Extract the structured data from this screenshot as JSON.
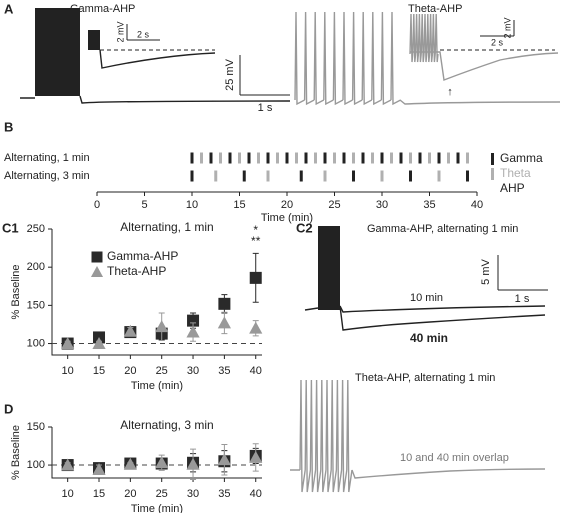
{
  "panel_a": {
    "label": "A",
    "gamma_title": "Gamma-AHP",
    "theta_title": "Theta-AHP",
    "gamma_inset_v": "2 mV",
    "gamma_inset_h": "2 s",
    "theta_inset_v": "2 mV",
    "theta_inset_h": "2 s",
    "scale_v": "25 mV",
    "scale_h": "1 s",
    "arrow": "↑"
  },
  "panel_b": {
    "label": "B"
  },
  "panel_c1": {
    "label": "C1"
  },
  "panel_d": {
    "label": "D"
  },
  "panel_c2": {
    "label": "C2",
    "gamma_title": "Gamma-AHP, alternating 1 min",
    "scale_v": "5 mV",
    "scale_h": "1 s",
    "trace_10": "10 min",
    "trace_40": "40 min",
    "theta_title": "Theta-AHP, alternating 1 min",
    "theta_note": "10 and 40 min overlap"
  },
  "chart_data": [
    {
      "type": "raster",
      "xlabel": "Time (min)",
      "xlim": [
        0,
        40
      ],
      "xticks": [
        0,
        5,
        10,
        15,
        20,
        25,
        30,
        35,
        40
      ],
      "series": [
        {
          "name": "Gamma",
          "color": "#222222"
        },
        {
          "name": "Theta",
          "color": "#b0b0b0"
        }
      ],
      "legend_note": "AHP",
      "rows": [
        {
          "label": "Alternating, 1 min",
          "events": [
            [
              10,
              12,
              14,
              16,
              18,
              20,
              22,
              24,
              26,
              28,
              30,
              32,
              34,
              36,
              38
            ],
            [
              11,
              13,
              15,
              17,
              19,
              21,
              23,
              25,
              27,
              29,
              31,
              33,
              35,
              37,
              39
            ]
          ]
        },
        {
          "label": "Alternating, 3 min",
          "events": [
            [
              10,
              15.5,
              21.5,
              27,
              33,
              39
            ],
            [
              12.5,
              18,
              24,
              30,
              36
            ]
          ]
        }
      ]
    },
    {
      "type": "scatter",
      "title": "Alternating, 1 min",
      "xlabel": "Time (min)",
      "ylabel": "% Baseline",
      "x": [
        10,
        15,
        20,
        25,
        30,
        35,
        40
      ],
      "xlim": [
        7.5,
        41
      ],
      "xticks": [
        10,
        15,
        20,
        25,
        30,
        35,
        40
      ],
      "ylim": [
        85,
        250
      ],
      "yticks": [
        100,
        150,
        200,
        250
      ],
      "reference_line": 100,
      "legend": "upper left",
      "series": [
        {
          "name": "Gamma-AHP",
          "color": "#2a2a2a",
          "marker": "square",
          "values": [
            100,
            108,
            115,
            113,
            130,
            152,
            186
          ],
          "errors": [
            2,
            4,
            6,
            8,
            10,
            12,
            32
          ]
        },
        {
          "name": "Theta-AHP",
          "color": "#999999",
          "marker": "triangle",
          "values": [
            100,
            100,
            116,
            122,
            115,
            127,
            120
          ],
          "errors": [
            3,
            3,
            5,
            18,
            12,
            14,
            10
          ]
        }
      ],
      "annotations": [
        "*",
        "**"
      ]
    },
    {
      "type": "scatter",
      "title": "Alternating, 3 min",
      "xlabel": "Time (min)",
      "ylabel": "% Baseline",
      "x": [
        10,
        15,
        20,
        25,
        30,
        35,
        40
      ],
      "xlim": [
        7.5,
        41
      ],
      "xticks": [
        10,
        15,
        20,
        25,
        30,
        35,
        40
      ],
      "ylim": [
        83,
        150
      ],
      "yticks": [
        100,
        150
      ],
      "reference_line": 100,
      "series": [
        {
          "name": "Gamma-AHP",
          "color": "#2a2a2a",
          "marker": "square",
          "values": [
            100,
            96,
            102,
            102,
            103,
            105,
            112
          ],
          "errors": [
            4,
            4,
            3,
            4,
            12,
            14,
            10
          ]
        },
        {
          "name": "Theta-AHP",
          "color": "#999999",
          "marker": "triangle",
          "values": [
            100,
            94,
            101,
            103,
            101,
            107,
            110
          ],
          "errors": [
            3,
            6,
            2,
            10,
            20,
            20,
            18
          ]
        }
      ]
    }
  ]
}
